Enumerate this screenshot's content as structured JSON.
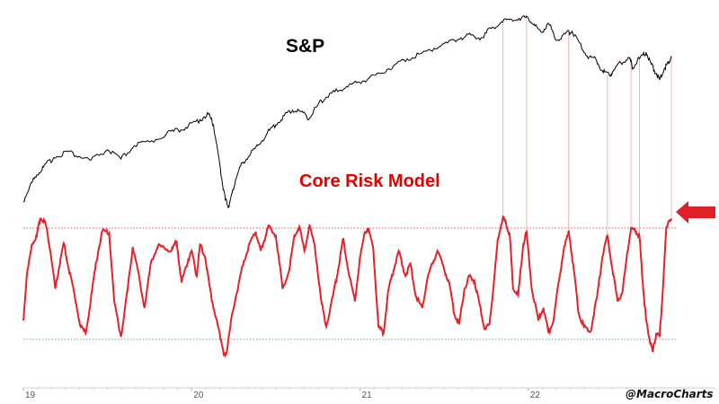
{
  "chart_data": {
    "type": "line",
    "x_ticks": [
      "19",
      "20",
      "21",
      "22"
    ],
    "x_range": [
      2019.0,
      2022.85
    ],
    "annotations": {
      "credit": "@MacroCharts"
    },
    "series": [
      {
        "name": "S&P",
        "color": "#000000",
        "points": [
          [
            2019.0,
            0.04
          ],
          [
            2019.04,
            0.16
          ],
          [
            2019.08,
            0.24
          ],
          [
            2019.12,
            0.3
          ],
          [
            2019.18,
            0.37
          ],
          [
            2019.26,
            0.42
          ],
          [
            2019.33,
            0.38
          ],
          [
            2019.4,
            0.35
          ],
          [
            2019.5,
            0.43
          ],
          [
            2019.58,
            0.36
          ],
          [
            2019.66,
            0.46
          ],
          [
            2019.75,
            0.49
          ],
          [
            2019.85,
            0.55
          ],
          [
            2019.92,
            0.58
          ],
          [
            2019.98,
            0.61
          ],
          [
            2020.05,
            0.66
          ],
          [
            2020.1,
            0.7
          ],
          [
            2020.13,
            0.62
          ],
          [
            2020.16,
            0.38
          ],
          [
            2020.18,
            0.2
          ],
          [
            2020.2,
            0.05
          ],
          [
            2020.22,
            0.0
          ],
          [
            2020.24,
            0.1
          ],
          [
            2020.26,
            0.2
          ],
          [
            2020.3,
            0.33
          ],
          [
            2020.35,
            0.4
          ],
          [
            2020.4,
            0.47
          ],
          [
            2020.45,
            0.56
          ],
          [
            2020.5,
            0.62
          ],
          [
            2020.55,
            0.69
          ],
          [
            2020.6,
            0.73
          ],
          [
            2020.65,
            0.72
          ],
          [
            2020.7,
            0.67
          ],
          [
            2020.75,
            0.77
          ],
          [
            2020.8,
            0.83
          ],
          [
            2020.85,
            0.87
          ],
          [
            2020.92,
            0.91
          ],
          [
            2020.98,
            0.94
          ],
          [
            2021.05,
            0.97
          ],
          [
            2021.12,
            1.01
          ],
          [
            2021.2,
            1.07
          ],
          [
            2021.28,
            1.12
          ],
          [
            2021.36,
            1.16
          ],
          [
            2021.44,
            1.2
          ],
          [
            2021.52,
            1.24
          ],
          [
            2021.6,
            1.28
          ],
          [
            2021.66,
            1.3
          ],
          [
            2021.72,
            1.28
          ],
          [
            2021.78,
            1.35
          ],
          [
            2021.84,
            1.4
          ],
          [
            2021.9,
            1.42
          ],
          [
            2021.96,
            1.43
          ],
          [
            2022.0,
            1.43
          ],
          [
            2022.04,
            1.37
          ],
          [
            2022.08,
            1.32
          ],
          [
            2022.12,
            1.39
          ],
          [
            2022.17,
            1.26
          ],
          [
            2022.22,
            1.31
          ],
          [
            2022.26,
            1.33
          ],
          [
            2022.3,
            1.25
          ],
          [
            2022.35,
            1.14
          ],
          [
            2022.4,
            1.12
          ],
          [
            2022.44,
            1.03
          ],
          [
            2022.48,
            1.0
          ],
          [
            2022.5,
            1.02
          ],
          [
            2022.55,
            1.09
          ],
          [
            2022.6,
            1.13
          ],
          [
            2022.62,
            1.05
          ],
          [
            2022.66,
            1.12
          ],
          [
            2022.7,
            1.17
          ],
          [
            2022.73,
            1.08
          ],
          [
            2022.76,
            1.01
          ],
          [
            2022.78,
            0.96
          ],
          [
            2022.81,
            1.05
          ],
          [
            2022.83,
            1.09
          ],
          [
            2022.85,
            1.14
          ]
        ]
      },
      {
        "name": "Core Risk Model",
        "color": "#e8202a",
        "points": [
          [
            2019.0,
            0.15
          ],
          [
            2019.02,
            0.5
          ],
          [
            2019.05,
            0.75
          ],
          [
            2019.08,
            0.82
          ],
          [
            2019.1,
            0.96
          ],
          [
            2019.13,
            0.93
          ],
          [
            2019.16,
            0.7
          ],
          [
            2019.19,
            0.4
          ],
          [
            2019.21,
            0.55
          ],
          [
            2019.24,
            0.76
          ],
          [
            2019.27,
            0.55
          ],
          [
            2019.3,
            0.38
          ],
          [
            2019.34,
            0.1
          ],
          [
            2019.37,
            0.05
          ],
          [
            2019.4,
            0.3
          ],
          [
            2019.43,
            0.6
          ],
          [
            2019.47,
            0.86
          ],
          [
            2019.51,
            0.84
          ],
          [
            2019.54,
            0.3
          ],
          [
            2019.58,
            0.02
          ],
          [
            2019.62,
            0.4
          ],
          [
            2019.65,
            0.73
          ],
          [
            2019.68,
            0.55
          ],
          [
            2019.72,
            0.25
          ],
          [
            2019.76,
            0.62
          ],
          [
            2019.8,
            0.74
          ],
          [
            2019.84,
            0.72
          ],
          [
            2019.88,
            0.7
          ],
          [
            2019.91,
            0.78
          ],
          [
            2019.94,
            0.45
          ],
          [
            2019.98,
            0.63
          ],
          [
            2020.0,
            0.7
          ],
          [
            2020.03,
            0.5
          ],
          [
            2020.05,
            0.75
          ],
          [
            2020.08,
            0.65
          ],
          [
            2020.12,
            0.3
          ],
          [
            2020.15,
            0.15
          ],
          [
            2020.19,
            -0.12
          ],
          [
            2020.21,
            -0.09
          ],
          [
            2020.24,
            0.2
          ],
          [
            2020.28,
            0.45
          ],
          [
            2020.31,
            0.62
          ],
          [
            2020.35,
            0.78
          ],
          [
            2020.38,
            0.85
          ],
          [
            2020.41,
            0.7
          ],
          [
            2020.43,
            0.78
          ],
          [
            2020.46,
            0.9
          ],
          [
            2020.5,
            0.82
          ],
          [
            2020.54,
            0.4
          ],
          [
            2020.58,
            0.55
          ],
          [
            2020.61,
            0.82
          ],
          [
            2020.64,
            0.89
          ],
          [
            2020.67,
            0.7
          ],
          [
            2020.7,
            0.9
          ],
          [
            2020.73,
            0.75
          ],
          [
            2020.77,
            0.3
          ],
          [
            2020.8,
            0.1
          ],
          [
            2020.84,
            0.35
          ],
          [
            2020.87,
            0.55
          ],
          [
            2020.9,
            0.8
          ],
          [
            2020.93,
            0.55
          ],
          [
            2020.97,
            0.3
          ],
          [
            2021.0,
            0.65
          ],
          [
            2021.03,
            0.85
          ],
          [
            2021.05,
            0.88
          ],
          [
            2021.08,
            0.7
          ],
          [
            2021.11,
            0.1
          ],
          [
            2021.14,
            0.05
          ],
          [
            2021.17,
            0.4
          ],
          [
            2021.2,
            0.55
          ],
          [
            2021.23,
            0.7
          ],
          [
            2021.27,
            0.5
          ],
          [
            2021.3,
            0.6
          ],
          [
            2021.33,
            0.35
          ],
          [
            2021.37,
            0.25
          ],
          [
            2021.4,
            0.48
          ],
          [
            2021.43,
            0.6
          ],
          [
            2021.46,
            0.7
          ],
          [
            2021.5,
            0.55
          ],
          [
            2021.53,
            0.45
          ],
          [
            2021.56,
            0.2
          ],
          [
            2021.59,
            0.12
          ],
          [
            2021.62,
            0.4
          ],
          [
            2021.65,
            0.5
          ],
          [
            2021.68,
            0.46
          ],
          [
            2021.71,
            0.28
          ],
          [
            2021.74,
            0.08
          ],
          [
            2021.77,
            0.12
          ],
          [
            2021.8,
            0.52
          ],
          [
            2021.82,
            0.8
          ],
          [
            2021.85,
            0.97
          ],
          [
            2021.87,
            0.9
          ],
          [
            2021.89,
            0.82
          ],
          [
            2021.91,
            0.4
          ],
          [
            2021.94,
            0.35
          ],
          [
            2021.97,
            0.75
          ],
          [
            2021.99,
            0.85
          ],
          [
            2022.02,
            0.4
          ],
          [
            2022.06,
            0.15
          ],
          [
            2022.09,
            0.25
          ],
          [
            2022.12,
            0.05
          ],
          [
            2022.15,
            0.15
          ],
          [
            2022.18,
            0.45
          ],
          [
            2022.21,
            0.7
          ],
          [
            2022.24,
            0.86
          ],
          [
            2022.27,
            0.55
          ],
          [
            2022.3,
            0.2
          ],
          [
            2022.33,
            0.1
          ],
          [
            2022.37,
            0.06
          ],
          [
            2022.41,
            0.35
          ],
          [
            2022.44,
            0.65
          ],
          [
            2022.47,
            0.82
          ],
          [
            2022.5,
            0.55
          ],
          [
            2022.53,
            0.3
          ],
          [
            2022.56,
            0.38
          ],
          [
            2022.59,
            0.7
          ],
          [
            2022.61,
            0.88
          ],
          [
            2022.64,
            0.85
          ],
          [
            2022.66,
            0.82
          ],
          [
            2022.68,
            0.45
          ],
          [
            2022.7,
            0.15
          ],
          [
            2022.72,
            0.0
          ],
          [
            2022.74,
            -0.1
          ],
          [
            2022.76,
            0.05
          ],
          [
            2022.78,
            0.02
          ],
          [
            2022.8,
            0.4
          ],
          [
            2022.82,
            0.88
          ],
          [
            2022.83,
            0.92
          ],
          [
            2022.85,
            0.94
          ]
        ]
      }
    ],
    "reference_lines": [
      {
        "name": "upper-threshold",
        "value": 0.88,
        "color": "#e8202a"
      },
      {
        "name": "lower-threshold",
        "value": 0.0,
        "color": "#2e8b6f"
      }
    ],
    "signal_dates": [
      2021.85,
      2021.99,
      2022.24,
      2022.47,
      2022.61,
      2022.66,
      2022.85
    ],
    "signal_arrow_color": "#dd1f26"
  }
}
